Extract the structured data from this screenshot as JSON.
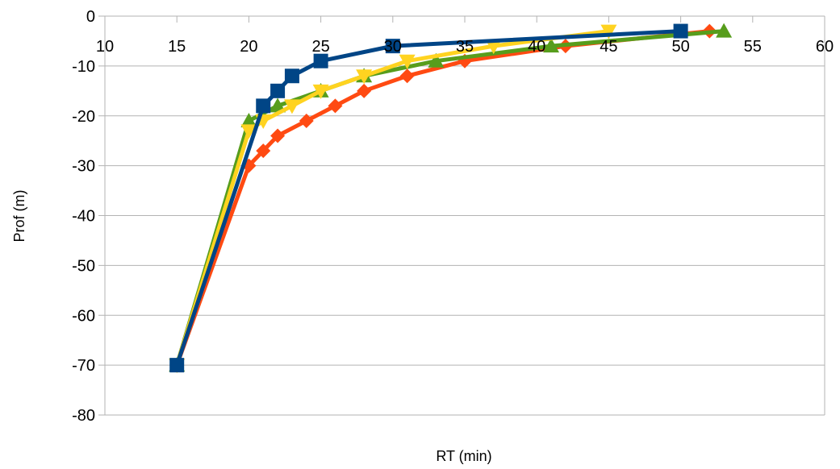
{
  "chart_data": {
    "type": "line",
    "title": "",
    "xlabel": "RT (min)",
    "ylabel": "Prof (m)",
    "xlim": [
      10,
      60
    ],
    "ylim": [
      -80,
      0
    ],
    "x_ticks": [
      10,
      15,
      20,
      25,
      30,
      35,
      40,
      45,
      50,
      55,
      60
    ],
    "y_ticks": [
      0,
      -10,
      -20,
      -30,
      -40,
      -50,
      -60,
      -70,
      -80
    ],
    "x_axis_position": "top (at y = 0)",
    "grid": {
      "horizontal": true,
      "vertical": false
    },
    "legend": "none",
    "series": [
      {
        "color": "#ff4a12",
        "marker": "diamond",
        "points": [
          [
            15,
            -70
          ],
          [
            20,
            -30
          ],
          [
            21,
            -27
          ],
          [
            22,
            -24
          ],
          [
            24,
            -21
          ],
          [
            26,
            -18
          ],
          [
            28,
            -15
          ],
          [
            31,
            -12
          ],
          [
            35,
            -9
          ],
          [
            42,
            -6
          ],
          [
            52,
            -3
          ]
        ]
      },
      {
        "color": "#579d1c",
        "marker": "triangle-up",
        "points": [
          [
            15,
            -70
          ],
          [
            20,
            -21
          ],
          [
            22,
            -18
          ],
          [
            25,
            -15
          ],
          [
            28,
            -12
          ],
          [
            33,
            -9
          ],
          [
            41,
            -6
          ],
          [
            53,
            -3
          ]
        ]
      },
      {
        "color": "#ffd320",
        "marker": "triangle-down",
        "points": [
          [
            15,
            -70
          ],
          [
            20,
            -23
          ],
          [
            21,
            -21
          ],
          [
            23,
            -18
          ],
          [
            25,
            -15
          ],
          [
            28,
            -12
          ],
          [
            31,
            -9
          ],
          [
            37,
            -6
          ],
          [
            45,
            -3
          ]
        ]
      },
      {
        "color": "#004586",
        "marker": "square",
        "points": [
          [
            15,
            -70
          ],
          [
            21,
            -18
          ],
          [
            22,
            -15
          ],
          [
            23,
            -12
          ],
          [
            25,
            -9
          ],
          [
            30,
            -6
          ],
          [
            50,
            -3
          ]
        ]
      }
    ]
  }
}
